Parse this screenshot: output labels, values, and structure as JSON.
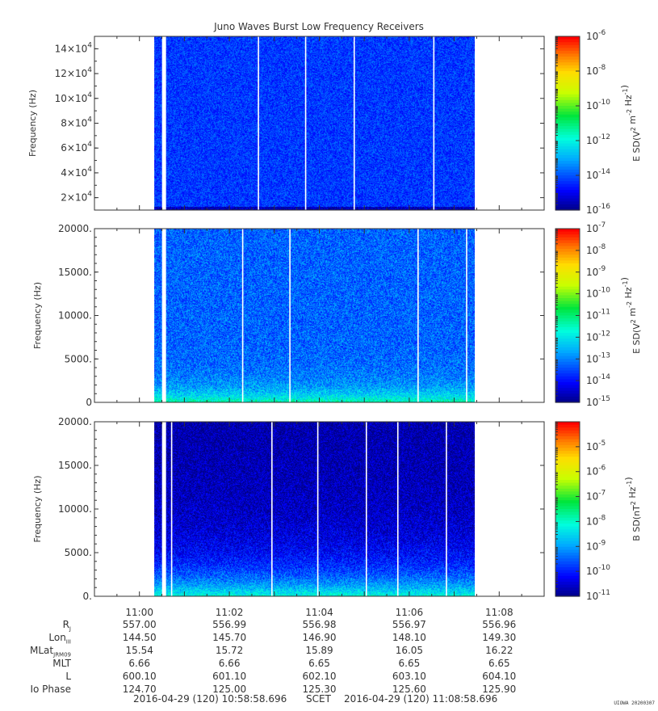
{
  "chart_data": [
    {
      "type": "heatmap",
      "title": "Juno Waves Burst Low Frequency Receivers",
      "ylabel": "Frequency (Hz)",
      "ylim": [
        10000,
        150000
      ],
      "yticks": [
        {
          "base": "2×10",
          "exp": "4"
        },
        {
          "base": "4×10",
          "exp": "4"
        },
        {
          "base": "6×10",
          "exp": "4"
        },
        {
          "base": "8×10",
          "exp": "4"
        },
        {
          "base": "10×10",
          "exp": "4"
        },
        {
          "base": "12×10",
          "exp": "4"
        },
        {
          "base": "14×10",
          "exp": "4"
        }
      ],
      "ytick_values": [
        20000,
        40000,
        60000,
        80000,
        100000,
        120000,
        140000
      ],
      "colorbar": {
        "label": "E SD(V^2 m^-2 Hz^-1)",
        "scale": "log",
        "range": [
          1e-16,
          1e-06
        ],
        "ticks": [
          {
            "base": "10",
            "exp": "-6"
          },
          {
            "base": "10",
            "exp": "-8"
          },
          {
            "base": "10",
            "exp": "-10"
          },
          {
            "base": "10",
            "exp": "-12"
          },
          {
            "base": "10",
            "exp": "-14"
          },
          {
            "base": "10",
            "exp": "-16"
          }
        ],
        "tick_exponents": [
          -6,
          -8,
          -10,
          -12,
          -14,
          -16
        ]
      },
      "data_start_min": 0.33,
      "data_end_min": 7.45,
      "gap_minutes": [
        0.52,
        2.65,
        3.7,
        4.78,
        6.55
      ],
      "background_level_exp": -14.2,
      "low_freq_level_exp": -15.5
    },
    {
      "type": "heatmap",
      "ylabel": "Frequency (Hz)",
      "ylim": [
        0,
        20000
      ],
      "yticks": [
        "0",
        "5000.",
        "10000.",
        "15000.",
        "20000."
      ],
      "ytick_values": [
        0,
        5000,
        10000,
        15000,
        20000
      ],
      "colorbar": {
        "label": "E SD(V^2 m^-2 Hz^-1)",
        "scale": "log",
        "range": [
          1e-15,
          1e-07
        ],
        "ticks": [
          {
            "base": "10",
            "exp": "-7"
          },
          {
            "base": "10",
            "exp": "-8"
          },
          {
            "base": "10",
            "exp": "-9"
          },
          {
            "base": "10",
            "exp": "-10"
          },
          {
            "base": "10",
            "exp": "-11"
          },
          {
            "base": "10",
            "exp": "-12"
          },
          {
            "base": "10",
            "exp": "-13"
          },
          {
            "base": "10",
            "exp": "-14"
          },
          {
            "base": "10",
            "exp": "-15"
          }
        ],
        "tick_exponents": [
          -7,
          -8,
          -9,
          -10,
          -11,
          -12,
          -13,
          -14,
          -15
        ]
      },
      "data_start_min": 0.33,
      "data_end_min": 7.45,
      "gap_minutes": [
        0.52,
        2.3,
        3.35,
        6.2,
        7.28
      ],
      "background_level_exp": -13.2,
      "low_freq_level_exp": -11.2
    },
    {
      "type": "heatmap",
      "ylabel": "Frequency (Hz)",
      "ylim": [
        0,
        20000
      ],
      "yticks": [
        "0.",
        "5000.",
        "10000.",
        "15000.",
        "20000."
      ],
      "ytick_values": [
        0,
        5000,
        10000,
        15000,
        20000
      ],
      "colorbar": {
        "label": "B SD(nT^2 Hz^-1)",
        "scale": "log",
        "range": [
          1e-11,
          0.0001
        ],
        "ticks": [
          {
            "base": "10",
            "exp": "-5"
          },
          {
            "base": "10",
            "exp": "-6"
          },
          {
            "base": "10",
            "exp": "-7"
          },
          {
            "base": "10",
            "exp": "-8"
          },
          {
            "base": "10",
            "exp": "-9"
          },
          {
            "base": "10",
            "exp": "-10"
          },
          {
            "base": "10",
            "exp": "-11"
          }
        ],
        "tick_exponents": [
          -5,
          -6,
          -7,
          -8,
          -9,
          -10,
          -11
        ]
      },
      "data_start_min": 0.33,
      "data_end_min": 7.45,
      "gap_minutes": [
        0.52,
        0.72,
        2.95,
        3.97,
        5.05,
        5.75,
        6.83
      ],
      "background_level_exp": -10.5,
      "low_freq_level_exp": -8.0
    }
  ],
  "time_axis": {
    "xlim_minutes": [
      -1.0,
      9.0
    ],
    "tick_minutes": [
      0,
      2,
      4,
      6,
      8
    ],
    "tick_labels": [
      "11:00",
      "11:02",
      "11:04",
      "11:06",
      "11:08"
    ]
  },
  "ephemeris": {
    "rows": [
      {
        "label": "R",
        "sub": "J",
        "values": [
          "557.00",
          "556.99",
          "556.98",
          "556.97",
          "556.96"
        ]
      },
      {
        "label": "Lon",
        "sub": "III",
        "values": [
          "144.50",
          "145.70",
          "146.90",
          "148.10",
          "149.30"
        ]
      },
      {
        "label": "MLat",
        "sub": "JRM09",
        "values": [
          "15.54",
          "15.72",
          "15.89",
          "16.05",
          "16.22"
        ]
      },
      {
        "label": "MLT",
        "sub": "",
        "values": [
          "6.66",
          "6.66",
          "6.65",
          "6.65",
          "6.65"
        ]
      },
      {
        "label": "L",
        "sub": "",
        "values": [
          "600.10",
          "601.10",
          "602.10",
          "603.10",
          "604.10"
        ]
      },
      {
        "label": "Io Phase",
        "sub": "",
        "values": [
          "124.70",
          "125.00",
          "125.30",
          "125.60",
          "125.90"
        ]
      }
    ]
  },
  "scet": {
    "start": "2016-04-29 (120) 10:58:58.696",
    "label": "SCET",
    "end": "2016-04-29 (120) 11:08:58.696"
  },
  "credit": "UIOWA 20200307",
  "colors": {
    "axis": "#333333",
    "gap": "#ffffff"
  }
}
